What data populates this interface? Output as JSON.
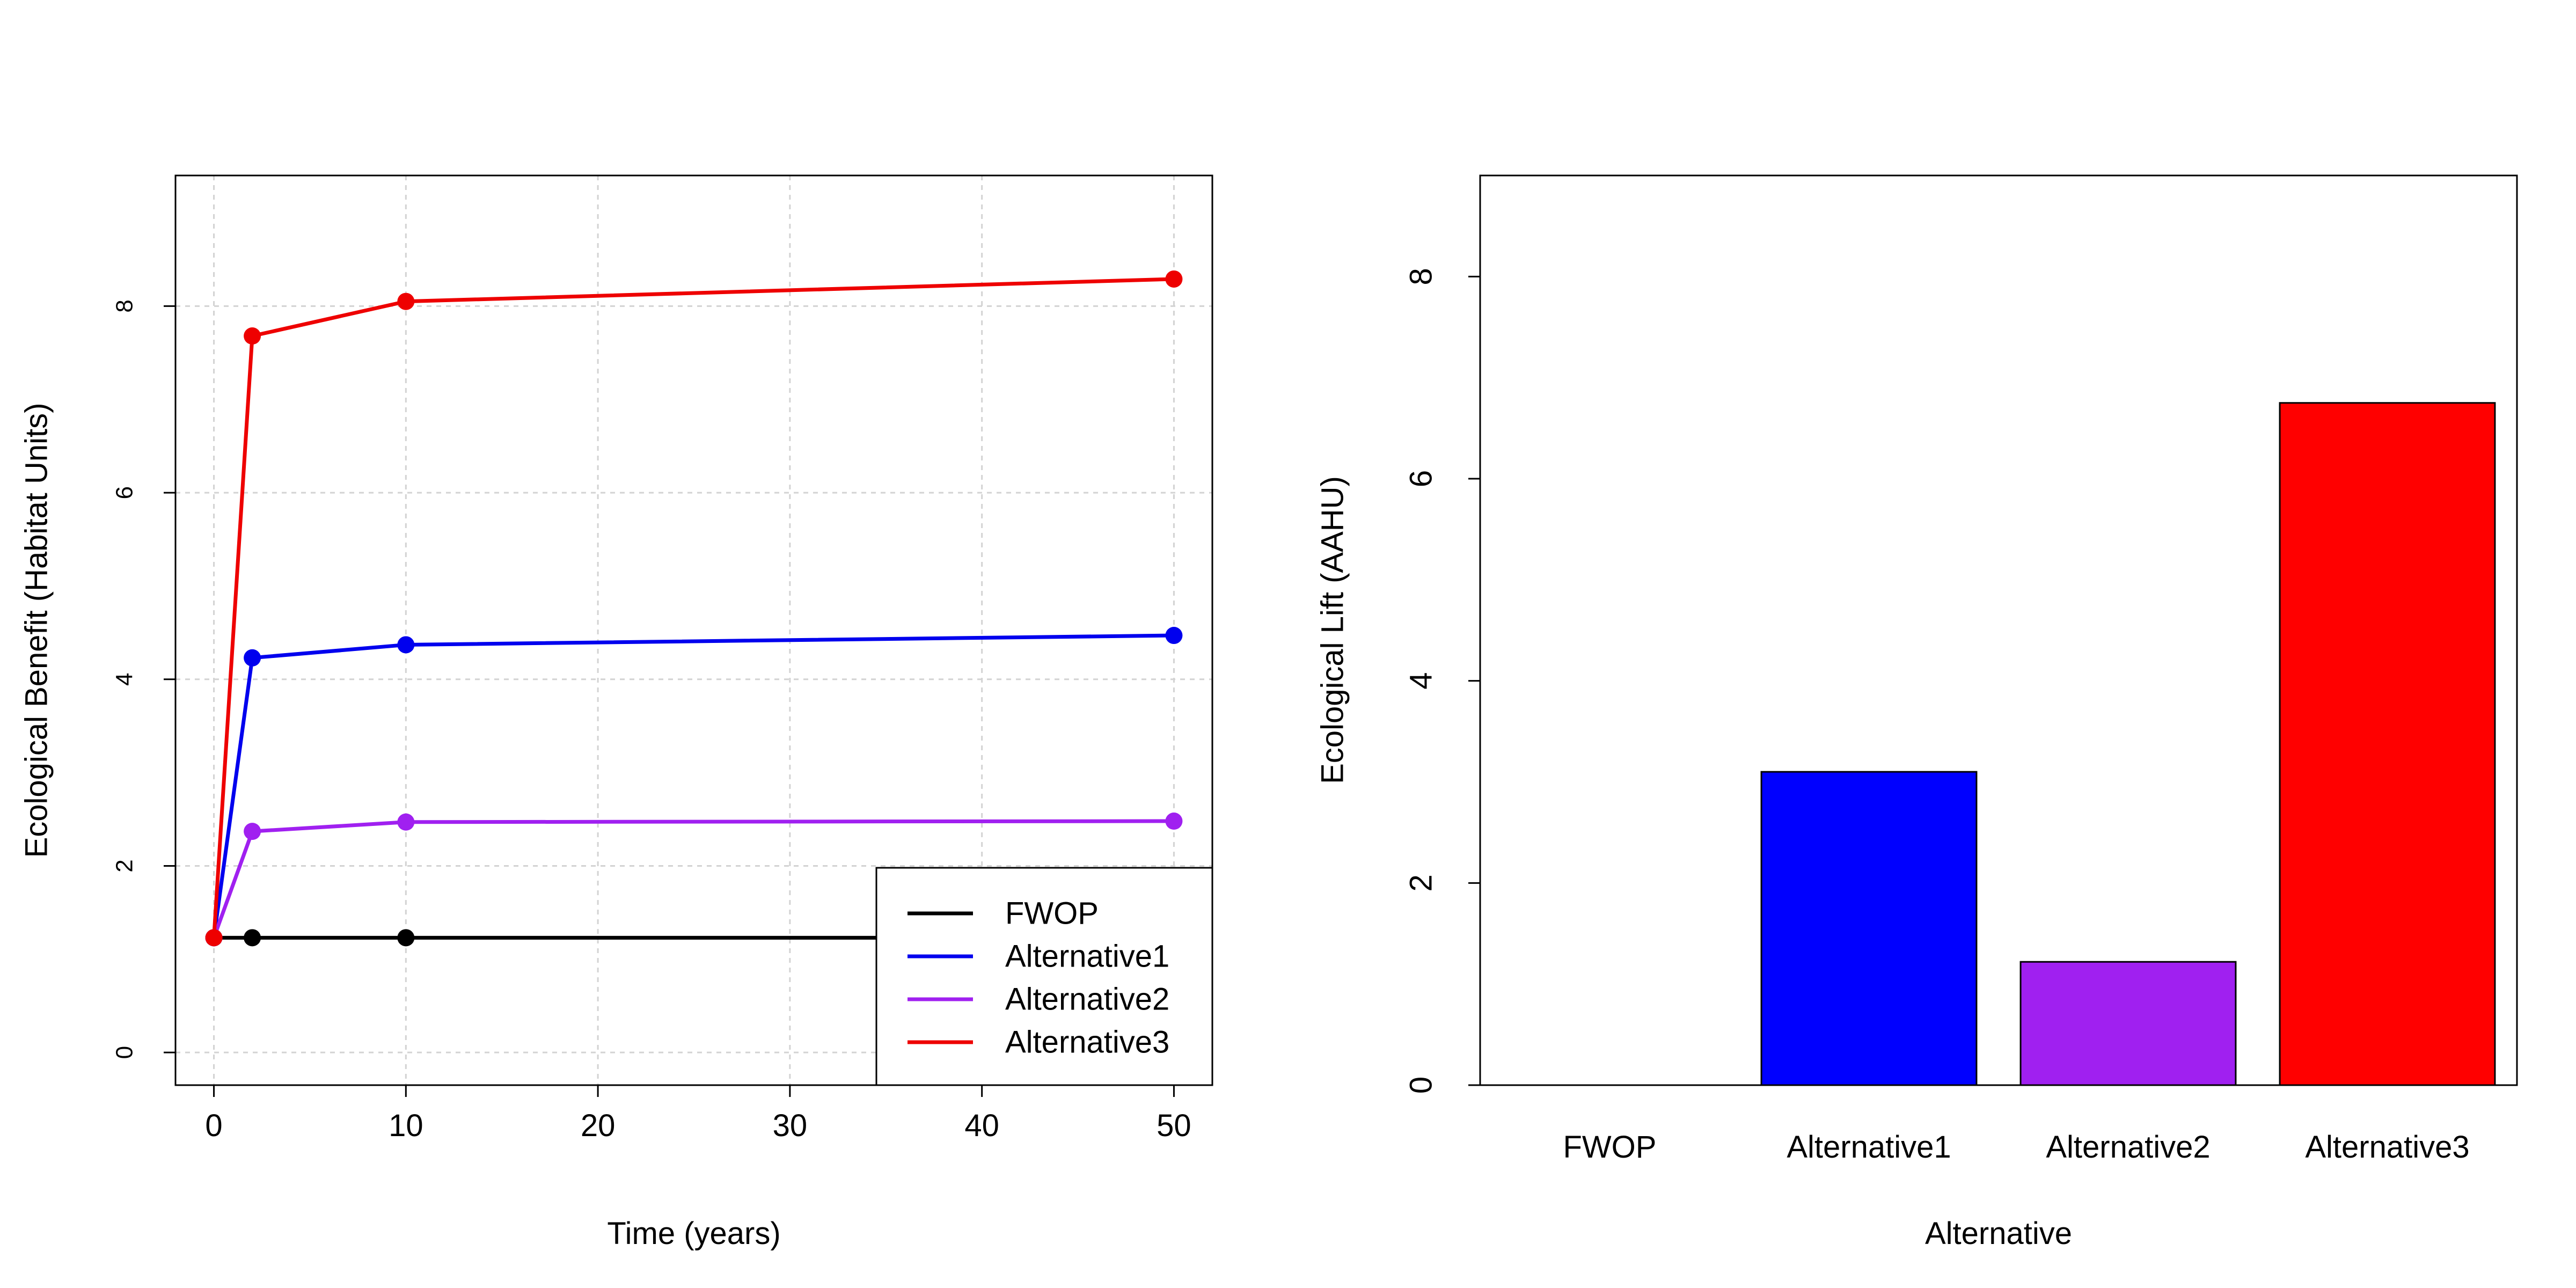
{
  "chart_data": [
    {
      "type": "line",
      "xlabel": "Time (years)",
      "ylabel": "Ecological Benefit (Habitat Units)",
      "xlim": [
        -2,
        52
      ],
      "ylim": [
        -0.35,
        9.4
      ],
      "x_ticks": [
        0,
        10,
        20,
        30,
        40,
        50
      ],
      "y_ticks": [
        0,
        2,
        4,
        6,
        8
      ],
      "grid": true,
      "legend_position": "bottom-right",
      "series": [
        {
          "name": "FWOP",
          "color": "#000000",
          "x": [
            0,
            2,
            10,
            50
          ],
          "y": [
            1.23,
            1.23,
            1.23,
            1.23
          ]
        },
        {
          "name": "Alternative1",
          "color": "#0000EE",
          "x": [
            0,
            2,
            10,
            50
          ],
          "y": [
            1.23,
            4.23,
            4.37,
            4.47
          ]
        },
        {
          "name": "Alternative2",
          "color": "#A020F0",
          "x": [
            0,
            2,
            10,
            50
          ],
          "y": [
            1.23,
            2.37,
            2.47,
            2.48
          ]
        },
        {
          "name": "Alternative3",
          "color": "#EE0000",
          "x": [
            0,
            2,
            10,
            50
          ],
          "y": [
            1.23,
            7.68,
            8.05,
            8.29
          ]
        }
      ]
    },
    {
      "type": "bar",
      "xlabel": "Alternative",
      "ylabel": "Ecological Lift (AAHU)",
      "ylim": [
        0,
        9
      ],
      "y_ticks": [
        0,
        2,
        4,
        6,
        8
      ],
      "categories": [
        "FWOP",
        "Alternative1",
        "Alternative2",
        "Alternative3"
      ],
      "values": [
        0,
        3.1,
        1.22,
        6.75
      ],
      "colors": [
        "#000000",
        "#0000FF",
        "#A020F0",
        "#FF0000"
      ],
      "grid": false
    }
  ]
}
